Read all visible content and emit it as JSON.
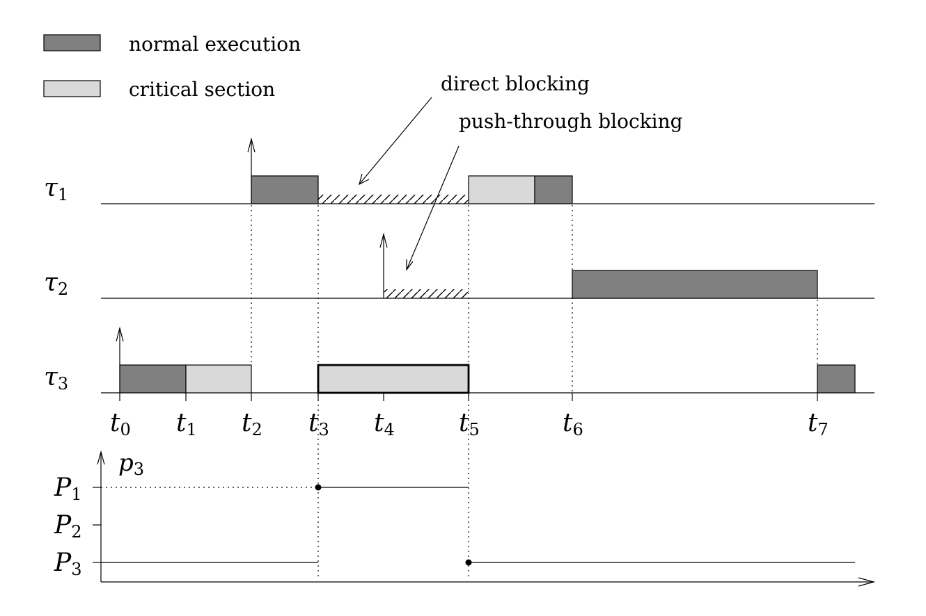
{
  "legend": [
    {
      "label": "normal execution",
      "kind": "normal"
    },
    {
      "label": "critical section",
      "kind": "critical"
    }
  ],
  "annotations": {
    "direct": "direct blocking",
    "push": "push-through blocking"
  },
  "colors": {
    "normal": "#808080",
    "critical": "#d9d9d9",
    "line": "#000000",
    "background": "#ffffff"
  },
  "tasks": [
    {
      "letter": "τ",
      "sub": "1"
    },
    {
      "letter": "τ",
      "sub": "2"
    },
    {
      "letter": "τ",
      "sub": "3"
    }
  ],
  "times": [
    {
      "letter": "t",
      "sub": "0"
    },
    {
      "letter": "t",
      "sub": "1"
    },
    {
      "letter": "t",
      "sub": "2"
    },
    {
      "letter": "t",
      "sub": "3"
    },
    {
      "letter": "t",
      "sub": "4"
    },
    {
      "letter": "t",
      "sub": "5"
    },
    {
      "letter": "t",
      "sub": "6"
    },
    {
      "letter": "t",
      "sub": "7"
    }
  ],
  "priority": {
    "axis": {
      "letter": "p",
      "sub": "3"
    },
    "levels": [
      {
        "letter": "P",
        "sub": "1"
      },
      {
        "letter": "P",
        "sub": "2"
      },
      {
        "letter": "P",
        "sub": "3"
      }
    ]
  }
}
